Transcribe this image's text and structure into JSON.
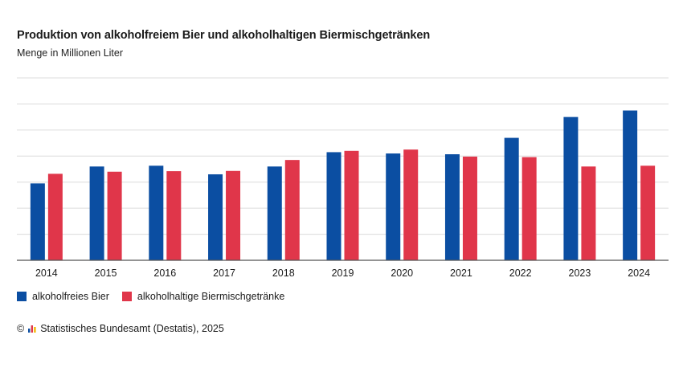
{
  "chart_data": {
    "type": "bar",
    "title": "Produktion von alkoholfreiem Bier und alkoholhaltigen Biermischgetränken",
    "subtitle": "Menge in Millionen Liter",
    "categories": [
      "2014",
      "2015",
      "2016",
      "2017",
      "2018",
      "2019",
      "2020",
      "2021",
      "2022",
      "2023",
      "2024"
    ],
    "series": [
      {
        "name": "alkoholfreies Bier",
        "color": "#0b4ea2",
        "values": [
          295,
          360,
          363,
          330,
          360,
          415,
          410,
          407,
          470,
          550,
          575
        ]
      },
      {
        "name": "alkoholhaltige Biermischgetränke",
        "color": "#e0364a",
        "values": [
          332,
          340,
          342,
          343,
          385,
          420,
          425,
          398,
          396,
          360,
          363
        ]
      }
    ],
    "ylim": [
      0,
      700
    ],
    "y_gridlines": [
      0,
      100,
      200,
      300,
      400,
      500,
      600,
      700
    ],
    "grid": true,
    "y_tick_labels_shown": false,
    "legend_position": "bottom-left"
  },
  "source": {
    "copyright_symbol": "©",
    "text": "Statistisches Bundesamt (Destatis), 2025",
    "logo_icon": "destatis-bars-icon"
  }
}
